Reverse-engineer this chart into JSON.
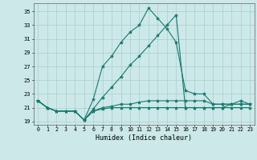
{
  "xlabel": "Humidex (Indice chaleur)",
  "background_color": "#cce8e8",
  "grid_color": "#aacfcf",
  "line_color": "#1a7a6e",
  "x_ticks": [
    0,
    1,
    2,
    3,
    4,
    5,
    6,
    7,
    8,
    9,
    10,
    11,
    12,
    13,
    14,
    15,
    16,
    17,
    18,
    19,
    20,
    21,
    22,
    23
  ],
  "y_ticks": [
    19,
    21,
    23,
    25,
    27,
    29,
    31,
    33,
    35
  ],
  "xlim": [
    -0.5,
    23.5
  ],
  "ylim": [
    18.5,
    36.2
  ],
  "series": [
    [
      22.0,
      21.0,
      20.5,
      20.5,
      20.5,
      19.2,
      22.2,
      27.0,
      28.5,
      30.5,
      32.0,
      33.0,
      35.5,
      34.0,
      32.5,
      30.5,
      23.5,
      23.0,
      23.0,
      21.5,
      21.5,
      21.5,
      22.0,
      21.5
    ],
    [
      22.0,
      21.0,
      20.5,
      20.5,
      20.5,
      19.2,
      20.8,
      22.5,
      24.0,
      25.5,
      27.2,
      28.5,
      30.0,
      31.5,
      33.0,
      34.5,
      21.0,
      21.0,
      21.0,
      21.0,
      21.0,
      21.0,
      21.0,
      21.0
    ],
    [
      22.0,
      21.0,
      20.5,
      20.5,
      20.5,
      19.2,
      20.5,
      21.0,
      21.2,
      21.5,
      21.5,
      21.8,
      22.0,
      22.0,
      22.0,
      22.0,
      22.0,
      22.0,
      22.0,
      21.5,
      21.5,
      21.5,
      21.5,
      21.5
    ],
    [
      22.0,
      21.0,
      20.5,
      20.5,
      20.5,
      19.2,
      20.5,
      20.8,
      21.0,
      21.0,
      21.0,
      21.0,
      21.0,
      21.0,
      21.0,
      21.0,
      21.0,
      21.0,
      21.0,
      21.0,
      21.0,
      21.5,
      21.5,
      21.5
    ]
  ]
}
